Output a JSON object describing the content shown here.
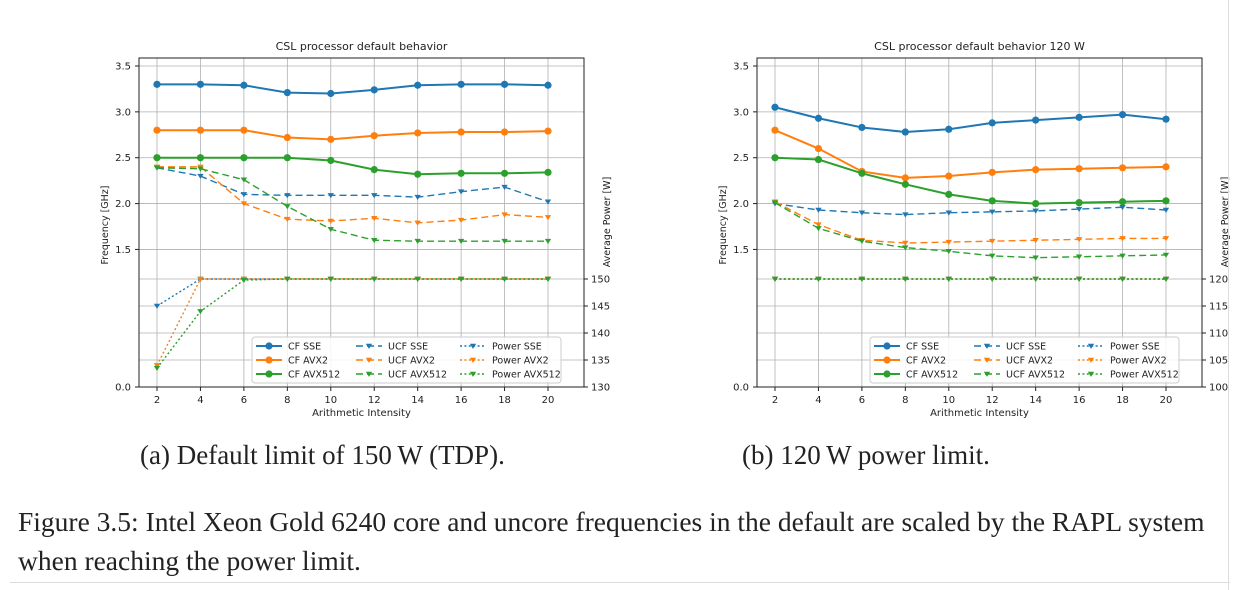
{
  "figure": {
    "caption": "Figure 3.5: Intel Xeon Gold 6240 core and uncore frequencies in the default are scaled by the RAPL system when reaching the power limit."
  },
  "panels": [
    {
      "subcaption": "(a) Default limit of 150 W (TDP).",
      "legend": {
        "col1": [
          "CF SSE",
          "CF AVX2",
          "CF AVX512"
        ],
        "col2": [
          "UCF SSE",
          "UCF AVX2",
          "UCF AVX512"
        ],
        "col3": [
          "Power SSE",
          "Power AVX2",
          "Power AVX512"
        ]
      }
    },
    {
      "subcaption": "(b) 120 W power limit.",
      "legend": {
        "col1": [
          "CF SSE",
          "CF AVX2",
          "CF AVX512"
        ],
        "col2": [
          "UCF SSE",
          "UCF AVX2",
          "UCF AVX512"
        ],
        "col3": [
          "Power SSE",
          "Power AVX2",
          "Power AVX512"
        ]
      }
    }
  ],
  "colors": {
    "sse": "#1f77b4",
    "avx2": "#ff7f0e",
    "avx512": "#2ca02c"
  },
  "chart_data": [
    {
      "type": "line",
      "title": "CSL processor default behavior",
      "xlabel": "Arithmetic Intensity",
      "ylabel": "Frequency [GHz]",
      "y2label": "Average Power [W]",
      "x": [
        2,
        4,
        6,
        8,
        10,
        12,
        14,
        16,
        18,
        20
      ],
      "xticks": [
        "2",
        "4",
        "6",
        "8",
        "10",
        "12",
        "14",
        "16",
        "18",
        "20"
      ],
      "ylim": [
        0.0,
        3.5
      ],
      "yticks": [
        "0.0",
        "1.5",
        "2.0",
        "2.5",
        "3.0",
        "3.5"
      ],
      "y2lim": [
        130,
        150
      ],
      "y2ticks": [
        "130",
        "135",
        "140",
        "145",
        "150"
      ],
      "grid": true,
      "legend_position": "lower-right",
      "series": [
        {
          "name": "CF SSE",
          "axis": "left",
          "style": "solid",
          "marker": "circle",
          "color": "#1f77b4",
          "values": [
            3.3,
            3.3,
            3.29,
            3.21,
            3.2,
            3.24,
            3.29,
            3.3,
            3.3,
            3.29
          ]
        },
        {
          "name": "CF AVX2",
          "axis": "left",
          "style": "solid",
          "marker": "circle",
          "color": "#ff7f0e",
          "values": [
            2.8,
            2.8,
            2.8,
            2.72,
            2.7,
            2.74,
            2.77,
            2.78,
            2.78,
            2.79
          ]
        },
        {
          "name": "CF AVX512",
          "axis": "left",
          "style": "solid",
          "marker": "circle",
          "color": "#2ca02c",
          "values": [
            2.5,
            2.5,
            2.5,
            2.5,
            2.47,
            2.37,
            2.32,
            2.33,
            2.33,
            2.34
          ]
        },
        {
          "name": "UCF SSE",
          "axis": "left",
          "style": "dashed",
          "marker": "triangle",
          "color": "#1f77b4",
          "values": [
            2.39,
            2.3,
            2.1,
            2.09,
            2.09,
            2.09,
            2.07,
            2.13,
            2.18,
            2.02
          ]
        },
        {
          "name": "UCF AVX2",
          "axis": "left",
          "style": "dashed",
          "marker": "triangle",
          "color": "#ff7f0e",
          "values": [
            2.4,
            2.4,
            2.0,
            1.83,
            1.81,
            1.84,
            1.79,
            1.82,
            1.88,
            1.85
          ]
        },
        {
          "name": "UCF AVX512",
          "axis": "left",
          "style": "dashed",
          "marker": "triangle",
          "color": "#2ca02c",
          "values": [
            2.39,
            2.38,
            2.26,
            1.97,
            1.72,
            1.6,
            1.59,
            1.59,
            1.59,
            1.59
          ]
        },
        {
          "name": "Power SSE",
          "axis": "right",
          "style": "dotted",
          "marker": "triangle",
          "color": "#1f77b4",
          "values": [
            145.0,
            150.0,
            150.0,
            150.0,
            150.0,
            150.0,
            150.0,
            150.0,
            150.0,
            150.0
          ]
        },
        {
          "name": "Power AVX2",
          "axis": "right",
          "style": "dotted",
          "marker": "triangle",
          "color": "#ff7f0e",
          "values": [
            134.0,
            150.0,
            150.0,
            150.0,
            150.0,
            150.0,
            150.0,
            150.0,
            150.0,
            150.0
          ]
        },
        {
          "name": "Power AVX512",
          "axis": "right",
          "style": "dotted",
          "marker": "triangle",
          "color": "#2ca02c",
          "values": [
            133.5,
            144.0,
            149.8,
            150.0,
            150.0,
            150.0,
            150.0,
            150.0,
            150.0,
            150.0
          ]
        }
      ]
    },
    {
      "type": "line",
      "title": "CSL processor default behavior 120 W",
      "xlabel": "Arithmetic Intensity",
      "ylabel": "Frequency [GHz]",
      "y2label": "Average Power [W]",
      "x": [
        2,
        4,
        6,
        8,
        10,
        12,
        14,
        16,
        18,
        20
      ],
      "xticks": [
        "2",
        "4",
        "6",
        "8",
        "10",
        "12",
        "14",
        "16",
        "18",
        "20"
      ],
      "ylim": [
        0.0,
        3.5
      ],
      "yticks": [
        "0.0",
        "1.5",
        "2.0",
        "2.5",
        "3.0",
        "3.5"
      ],
      "y2lim": [
        100,
        120
      ],
      "y2ticks": [
        "100",
        "105",
        "110",
        "115",
        "120"
      ],
      "grid": true,
      "legend_position": "lower-right",
      "series": [
        {
          "name": "CF SSE",
          "axis": "left",
          "style": "solid",
          "marker": "circle",
          "color": "#1f77b4",
          "values": [
            3.05,
            2.93,
            2.83,
            2.78,
            2.81,
            2.88,
            2.91,
            2.94,
            2.97,
            2.92
          ]
        },
        {
          "name": "CF AVX2",
          "axis": "left",
          "style": "solid",
          "marker": "circle",
          "color": "#ff7f0e",
          "values": [
            2.8,
            2.6,
            2.35,
            2.28,
            2.3,
            2.34,
            2.37,
            2.38,
            2.39,
            2.4
          ]
        },
        {
          "name": "CF AVX512",
          "axis": "left",
          "style": "solid",
          "marker": "circle",
          "color": "#2ca02c",
          "values": [
            2.5,
            2.48,
            2.33,
            2.21,
            2.1,
            2.03,
            2.0,
            2.01,
            2.02,
            2.03
          ]
        },
        {
          "name": "UCF SSE",
          "axis": "left",
          "style": "dashed",
          "marker": "triangle",
          "color": "#1f77b4",
          "values": [
            2.0,
            1.93,
            1.9,
            1.88,
            1.9,
            1.91,
            1.92,
            1.94,
            1.96,
            1.93
          ]
        },
        {
          "name": "UCF AVX2",
          "axis": "left",
          "style": "dashed",
          "marker": "triangle",
          "color": "#ff7f0e",
          "values": [
            2.02,
            1.77,
            1.6,
            1.57,
            1.58,
            1.59,
            1.6,
            1.61,
            1.62,
            1.62
          ]
        },
        {
          "name": "UCF AVX512",
          "axis": "left",
          "style": "dashed",
          "marker": "triangle",
          "color": "#2ca02c",
          "values": [
            2.01,
            1.73,
            1.59,
            1.52,
            1.48,
            1.43,
            1.41,
            1.42,
            1.43,
            1.44
          ]
        },
        {
          "name": "Power SSE",
          "axis": "right",
          "style": "dotted",
          "marker": "triangle",
          "color": "#1f77b4",
          "values": [
            120,
            120,
            120,
            120,
            120,
            120,
            120,
            120,
            120,
            120
          ]
        },
        {
          "name": "Power AVX2",
          "axis": "right",
          "style": "dotted",
          "marker": "triangle",
          "color": "#ff7f0e",
          "values": [
            120,
            120,
            120,
            120,
            120,
            120,
            120,
            120,
            120,
            120
          ]
        },
        {
          "name": "Power AVX512",
          "axis": "right",
          "style": "dotted",
          "marker": "triangle",
          "color": "#2ca02c",
          "values": [
            120,
            120,
            120,
            120,
            120,
            120,
            120,
            120,
            120,
            120
          ]
        }
      ]
    }
  ]
}
